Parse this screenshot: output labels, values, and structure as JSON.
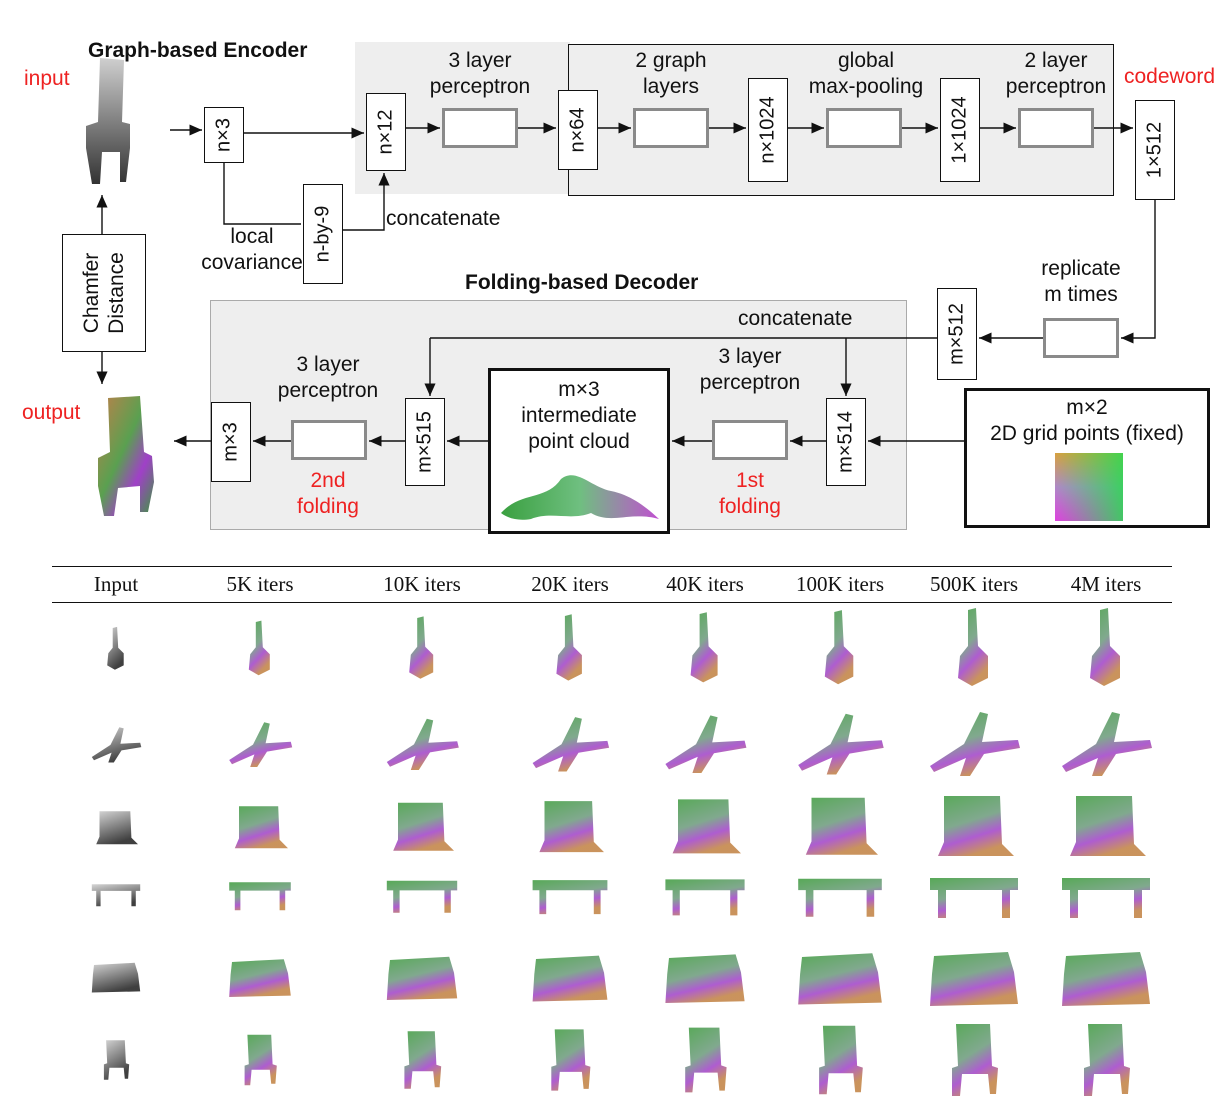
{
  "diagram": {
    "encoder_title": "Graph-based Encoder",
    "decoder_title": "Folding-based Decoder",
    "input_label": "input",
    "output_label": "output",
    "codeword_label": "codeword",
    "chamfer_line1": "Chamfer",
    "chamfer_line2": "Distance",
    "local_cov_line1": "local",
    "local_cov_line2": "covariance",
    "concatenate_top": "concatenate",
    "concatenate_dec": "concatenate",
    "perceptron3_line1": "3 layer",
    "perceptron3_line2": "perceptron",
    "graph_line1": "2 graph",
    "graph_line2": "layers",
    "pool_line1": "global",
    "pool_line2": "max-pooling",
    "perceptron2_line1": "2 layer",
    "perceptron2_line2": "perceptron",
    "replicate_line1": "replicate",
    "replicate_line2": "m times",
    "dec_perc1_line1": "3 layer",
    "dec_perc1_line2": "perceptron",
    "dec_perc2_line1": "3 layer",
    "dec_perc2_line2": "perceptron",
    "fold1_line1": "1st",
    "fold1_line2": "folding",
    "fold2_line1": "2nd",
    "fold2_line2": "folding",
    "inter_line1": "m×3",
    "inter_line2": "intermediate",
    "inter_line3": "point cloud",
    "grid_line1": "m×2",
    "grid_line2": "2D grid points (fixed)",
    "dims": {
      "n3": "n×3",
      "n12": "n×12",
      "nby9": "n-by-9",
      "n64": "n×64",
      "n1024": "n×1024",
      "one1024": "1×1024",
      "one512": "1×512",
      "m512": "m×512",
      "m514": "m×514",
      "m515": "m×515",
      "m3": "m×3"
    }
  },
  "table": {
    "columns": [
      "Input",
      "5K iters",
      "10K iters",
      "20K iters",
      "40K iters",
      "100K iters",
      "500K iters",
      "4M iters"
    ],
    "rows": [
      "guitar",
      "airplane",
      "laptop",
      "table",
      "sofa",
      "chair"
    ]
  },
  "colors": {
    "accent_red": "#ee2222",
    "shade": "#eeeeee",
    "green": "#3a9a3a",
    "purple": "#a040c8",
    "orange": "#c08040"
  }
}
